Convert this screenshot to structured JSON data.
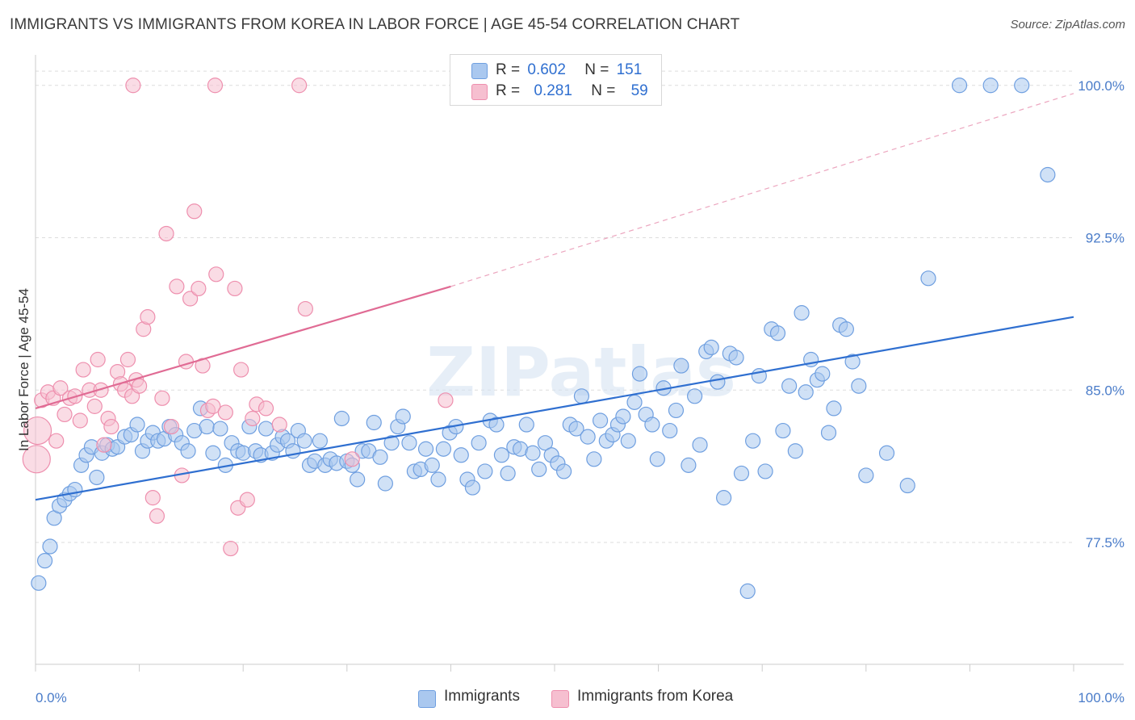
{
  "header": {
    "title": "IMMIGRANTS VS IMMIGRANTS FROM KOREA IN LABOR FORCE | AGE 45-54 CORRELATION CHART",
    "source": "Source: ZipAtlas.com"
  },
  "watermark": "ZIPatlas",
  "legend": {
    "items": [
      {
        "r_label": "R =",
        "r_value": "0.602",
        "n_label": "N =",
        "n_value": "151"
      },
      {
        "r_label": "R =",
        "r_value": "0.281",
        "n_label": "N =",
        "n_value": "59"
      }
    ]
  },
  "bottom_legend": [
    "Immigrants",
    "Immigrants from Korea"
  ],
  "colors": {
    "blue_fill": "#aac8ef",
    "blue_stroke": "#6f9fe0",
    "blue_line": "#2f6fd0",
    "pink_fill": "#f6bfd0",
    "pink_stroke": "#ee8fae",
    "pink_line": "#e06b94",
    "tick_color": "#4a7cc9",
    "grid": "#dddddd"
  },
  "chart_data": {
    "type": "scatter",
    "ylabel": "In Labor Force | Age 45-54",
    "xlabel": "",
    "xlim": [
      0,
      100
    ],
    "ylim": [
      71.5,
      101.5
    ],
    "x_ticks": [
      0,
      100
    ],
    "x_tick_labels": [
      "0.0%",
      "100.0%"
    ],
    "y_ticks": [
      77.5,
      85.0,
      92.5,
      100.0
    ],
    "y_tick_labels": [
      "77.5%",
      "85.0%",
      "92.5%",
      "100.0%"
    ],
    "grid": true,
    "legend_position": "top-center",
    "series": [
      {
        "name": "Immigrants",
        "color": "#6f9fe0",
        "trend": {
          "x": [
            0,
            100
          ],
          "y": [
            79.6,
            88.6
          ],
          "style": "solid"
        },
        "points": [
          [
            0.3,
            75.5
          ],
          [
            0.9,
            76.6
          ],
          [
            1.4,
            77.3
          ],
          [
            1.8,
            78.7
          ],
          [
            2.3,
            79.3
          ],
          [
            2.8,
            79.6
          ],
          [
            3.3,
            79.9
          ],
          [
            3.8,
            80.1
          ],
          [
            4.4,
            81.3
          ],
          [
            4.9,
            81.8
          ],
          [
            5.4,
            82.2
          ],
          [
            5.9,
            80.7
          ],
          [
            6.4,
            81.9
          ],
          [
            6.9,
            82.3
          ],
          [
            7.4,
            82.1
          ],
          [
            7.9,
            82.2
          ],
          [
            8.6,
            82.7
          ],
          [
            9.2,
            82.8
          ],
          [
            9.8,
            83.3
          ],
          [
            10.3,
            82.0
          ],
          [
            10.8,
            82.5
          ],
          [
            11.3,
            82.9
          ],
          [
            11.8,
            82.5
          ],
          [
            12.4,
            82.6
          ],
          [
            12.9,
            83.2
          ],
          [
            13.5,
            82.8
          ],
          [
            14.1,
            82.4
          ],
          [
            14.7,
            82.0
          ],
          [
            15.3,
            83.0
          ],
          [
            15.9,
            84.1
          ],
          [
            16.5,
            83.2
          ],
          [
            17.1,
            81.9
          ],
          [
            17.8,
            83.1
          ],
          [
            18.3,
            81.3
          ],
          [
            18.9,
            82.4
          ],
          [
            19.5,
            82.0
          ],
          [
            20.0,
            81.9
          ],
          [
            20.6,
            83.2
          ],
          [
            21.2,
            82.0
          ],
          [
            21.7,
            81.8
          ],
          [
            22.2,
            83.1
          ],
          [
            22.8,
            81.9
          ],
          [
            23.3,
            82.3
          ],
          [
            23.8,
            82.7
          ],
          [
            24.3,
            82.5
          ],
          [
            24.8,
            82.0
          ],
          [
            25.3,
            83.0
          ],
          [
            25.9,
            82.5
          ],
          [
            26.4,
            81.3
          ],
          [
            26.9,
            81.5
          ],
          [
            27.4,
            82.5
          ],
          [
            27.9,
            81.3
          ],
          [
            28.4,
            81.6
          ],
          [
            29.0,
            81.4
          ],
          [
            29.5,
            83.6
          ],
          [
            30.0,
            81.5
          ],
          [
            30.5,
            81.3
          ],
          [
            31.0,
            80.6
          ],
          [
            31.5,
            82.0
          ],
          [
            32.1,
            82.0
          ],
          [
            32.6,
            83.4
          ],
          [
            33.2,
            81.7
          ],
          [
            33.7,
            80.4
          ],
          [
            34.3,
            82.4
          ],
          [
            34.9,
            83.2
          ],
          [
            35.4,
            83.7
          ],
          [
            36.0,
            82.4
          ],
          [
            36.5,
            81.0
          ],
          [
            37.1,
            81.1
          ],
          [
            37.6,
            82.1
          ],
          [
            38.2,
            81.3
          ],
          [
            38.8,
            80.6
          ],
          [
            39.3,
            82.1
          ],
          [
            39.9,
            82.9
          ],
          [
            40.5,
            83.2
          ],
          [
            41.0,
            81.8
          ],
          [
            41.6,
            80.6
          ],
          [
            42.1,
            80.2
          ],
          [
            42.7,
            82.4
          ],
          [
            43.3,
            81.0
          ],
          [
            43.8,
            83.5
          ],
          [
            44.4,
            83.3
          ],
          [
            44.9,
            81.8
          ],
          [
            45.5,
            80.9
          ],
          [
            46.1,
            82.2
          ],
          [
            46.7,
            82.1
          ],
          [
            47.3,
            83.3
          ],
          [
            47.9,
            81.9
          ],
          [
            48.5,
            81.1
          ],
          [
            49.1,
            82.4
          ],
          [
            49.7,
            81.8
          ],
          [
            50.3,
            81.4
          ],
          [
            50.9,
            81.0
          ],
          [
            51.5,
            83.3
          ],
          [
            52.1,
            83.1
          ],
          [
            52.6,
            84.7
          ],
          [
            53.2,
            82.7
          ],
          [
            53.8,
            81.6
          ],
          [
            54.4,
            83.5
          ],
          [
            55.0,
            82.5
          ],
          [
            55.6,
            82.8
          ],
          [
            56.1,
            83.3
          ],
          [
            56.6,
            83.7
          ],
          [
            57.1,
            82.5
          ],
          [
            57.7,
            84.4
          ],
          [
            58.2,
            85.8
          ],
          [
            58.8,
            83.8
          ],
          [
            59.4,
            83.3
          ],
          [
            59.9,
            81.6
          ],
          [
            60.5,
            85.1
          ],
          [
            61.1,
            83.0
          ],
          [
            61.7,
            84.0
          ],
          [
            62.2,
            86.2
          ],
          [
            62.9,
            81.3
          ],
          [
            63.5,
            84.7
          ],
          [
            64.0,
            82.3
          ],
          [
            64.6,
            86.9
          ],
          [
            65.1,
            87.1
          ],
          [
            65.7,
            85.4
          ],
          [
            66.3,
            79.7
          ],
          [
            66.9,
            86.8
          ],
          [
            67.5,
            86.6
          ],
          [
            68.0,
            80.9
          ],
          [
            68.6,
            75.1
          ],
          [
            69.1,
            82.5
          ],
          [
            69.7,
            85.7
          ],
          [
            70.3,
            81.0
          ],
          [
            70.9,
            88.0
          ],
          [
            71.5,
            87.8
          ],
          [
            72.0,
            83.0
          ],
          [
            72.6,
            85.2
          ],
          [
            73.2,
            82.0
          ],
          [
            73.8,
            88.8
          ],
          [
            74.2,
            84.9
          ],
          [
            74.7,
            86.5
          ],
          [
            75.3,
            85.5
          ],
          [
            75.8,
            85.8
          ],
          [
            76.4,
            82.9
          ],
          [
            76.9,
            84.1
          ],
          [
            77.5,
            88.2
          ],
          [
            78.1,
            88.0
          ],
          [
            78.7,
            86.4
          ],
          [
            79.3,
            85.2
          ],
          [
            80.0,
            80.8
          ],
          [
            82.0,
            81.9
          ],
          [
            84.0,
            80.3
          ],
          [
            86.0,
            90.5
          ],
          [
            89.0,
            100.0
          ],
          [
            92.0,
            100.0
          ],
          [
            95.0,
            100.0
          ],
          [
            97.5,
            95.6
          ]
        ]
      },
      {
        "name": "Immigrants from Korea",
        "color": "#ee8fae",
        "trend": {
          "x": [
            0,
            40
          ],
          "y": [
            84.1,
            90.1
          ],
          "style": "solid",
          "extension": {
            "x": [
              40,
              100
            ],
            "y": [
              90.1,
              99.6
            ],
            "style": "dashed"
          }
        },
        "points": [
          [
            0.1,
            81.6
          ],
          [
            0.2,
            83.0
          ],
          [
            0.6,
            84.5
          ],
          [
            1.2,
            84.9
          ],
          [
            1.7,
            84.6
          ],
          [
            2.0,
            82.5
          ],
          [
            2.4,
            85.1
          ],
          [
            2.8,
            83.8
          ],
          [
            3.3,
            84.6
          ],
          [
            3.8,
            84.7
          ],
          [
            4.3,
            83.5
          ],
          [
            4.6,
            86.0
          ],
          [
            5.2,
            85.0
          ],
          [
            5.7,
            84.2
          ],
          [
            6.0,
            86.5
          ],
          [
            6.3,
            85.0
          ],
          [
            6.6,
            82.3
          ],
          [
            7.0,
            83.6
          ],
          [
            7.3,
            83.2
          ],
          [
            7.9,
            85.9
          ],
          [
            8.2,
            85.3
          ],
          [
            8.6,
            85.0
          ],
          [
            8.9,
            86.5
          ],
          [
            9.3,
            84.7
          ],
          [
            9.7,
            85.5
          ],
          [
            10.0,
            85.2
          ],
          [
            10.4,
            88.0
          ],
          [
            10.8,
            88.6
          ],
          [
            11.3,
            79.7
          ],
          [
            11.7,
            78.8
          ],
          [
            12.2,
            84.6
          ],
          [
            12.6,
            92.7
          ],
          [
            13.1,
            83.2
          ],
          [
            13.6,
            90.1
          ],
          [
            14.1,
            80.8
          ],
          [
            14.5,
            86.4
          ],
          [
            14.9,
            89.5
          ],
          [
            15.3,
            93.8
          ],
          [
            15.7,
            90.0
          ],
          [
            16.1,
            86.2
          ],
          [
            16.6,
            84.0
          ],
          [
            17.1,
            84.2
          ],
          [
            17.4,
            90.7
          ],
          [
            18.3,
            83.9
          ],
          [
            18.8,
            77.2
          ],
          [
            19.2,
            90.0
          ],
          [
            19.5,
            79.2
          ],
          [
            19.8,
            86.0
          ],
          [
            20.4,
            79.6
          ],
          [
            20.9,
            83.6
          ],
          [
            21.3,
            84.3
          ],
          [
            22.2,
            84.1
          ],
          [
            23.5,
            83.3
          ],
          [
            25.4,
            100.0
          ],
          [
            26.0,
            89.0
          ],
          [
            30.5,
            81.6
          ],
          [
            39.5,
            84.5
          ],
          [
            17.3,
            100.0
          ],
          [
            9.4,
            100.0
          ]
        ]
      }
    ]
  }
}
